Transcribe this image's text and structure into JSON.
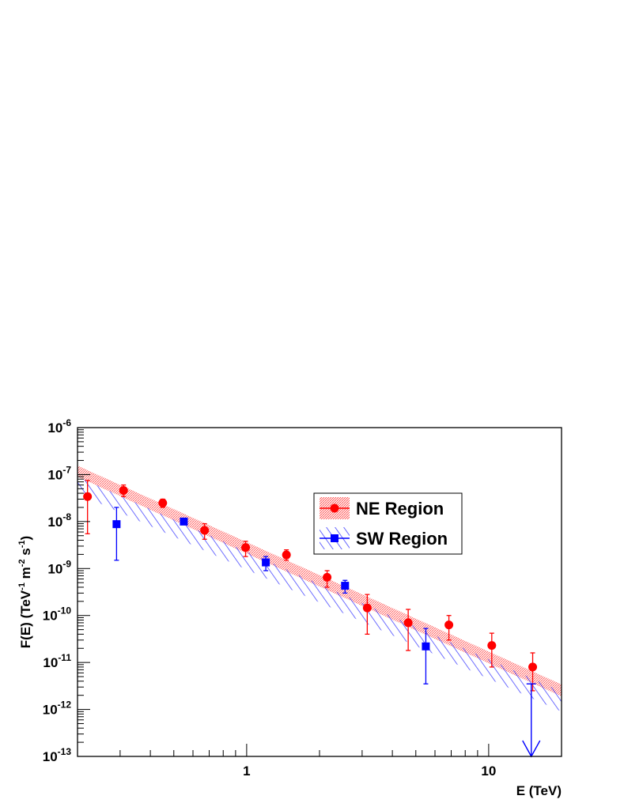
{
  "chart_data": {
    "type": "scatter",
    "xscale": "log",
    "yscale": "log",
    "xlim": [
      0.2,
      20
    ],
    "ylim": [
      1e-13,
      1e-06
    ],
    "xlabel": "E (TeV)",
    "ylabel": {
      "base": "F(E) (TeV",
      "exp1": "-1",
      "mid1": " m",
      "exp2": "-2",
      "mid2": " s",
      "exp3": "-1",
      "end": ")"
    },
    "x_ticks": [
      {
        "value": 1,
        "label": "1"
      },
      {
        "value": 10,
        "label": "10"
      }
    ],
    "y_ticks": [
      {
        "value": 1e-13,
        "base": "10",
        "exp": "-13"
      },
      {
        "value": 1e-12,
        "base": "10",
        "exp": "-12"
      },
      {
        "value": 1e-11,
        "base": "10",
        "exp": "-11"
      },
      {
        "value": 1e-10,
        "base": "10",
        "exp": "-10"
      },
      {
        "value": 1e-09,
        "base": "10",
        "exp": "-9"
      },
      {
        "value": 1e-08,
        "base": "10",
        "exp": "-8"
      },
      {
        "value": 1e-07,
        "base": "10",
        "exp": "-7"
      },
      {
        "value": 1e-06,
        "base": "10",
        "exp": "-6"
      }
    ],
    "series": [
      {
        "name": "NE Region",
        "color": "#ff0000",
        "marker": "circle",
        "band": {
          "x": [
            0.2,
            20
          ],
          "y_low": [
            9e-08,
            1.9e-12
          ],
          "y_high": [
            1.55e-07,
            3.4e-12
          ],
          "style": "dense-fill"
        },
        "points": [
          {
            "x": 0.22,
            "y": 3.4e-08,
            "lo": 5.5e-09,
            "hi": 7.5e-08
          },
          {
            "x": 0.31,
            "y": 4.6e-08,
            "lo": 3.4e-08,
            "hi": 6e-08
          },
          {
            "x": 0.45,
            "y": 2.5e-08,
            "lo": 2e-08,
            "hi": 3e-08
          },
          {
            "x": 0.67,
            "y": 6.5e-09,
            "lo": 4.2e-09,
            "hi": 9e-09
          },
          {
            "x": 0.99,
            "y": 2.8e-09,
            "lo": 1.8e-09,
            "hi": 3.8e-09
          },
          {
            "x": 1.46,
            "y": 1.95e-09,
            "lo": 1.5e-09,
            "hi": 2.5e-09
          },
          {
            "x": 2.15,
            "y": 6.5e-10,
            "lo": 4e-10,
            "hi": 9e-10
          },
          {
            "x": 3.15,
            "y": 1.45e-10,
            "lo": 4e-11,
            "hi": 2.8e-10
          },
          {
            "x": 4.65,
            "y": 7e-11,
            "lo": 1.8e-11,
            "hi": 1.35e-10
          },
          {
            "x": 6.85,
            "y": 6.3e-11,
            "lo": 3e-11,
            "hi": 1e-10
          },
          {
            "x": 10.3,
            "y": 2.3e-11,
            "lo": 8e-12,
            "hi": 4.2e-11
          },
          {
            "x": 15.2,
            "y": 8e-12,
            "lo": 2.5e-12,
            "hi": 1.6e-11
          }
        ]
      },
      {
        "name": "SW Region",
        "color": "#0000ff",
        "marker": "square",
        "band": {
          "x": [
            0.2,
            20
          ],
          "y_low": [
            4e-08,
            9e-13
          ],
          "y_high": [
            9e-08,
            2.4e-12
          ],
          "style": "hatched"
        },
        "points": [
          {
            "x": 0.29,
            "y": 8.8e-09,
            "lo": 1.5e-09,
            "hi": 2e-08
          },
          {
            "x": 0.55,
            "y": 1e-08,
            "lo": 9e-09,
            "hi": 1.12e-08
          },
          {
            "x": 1.2,
            "y": 1.35e-09,
            "lo": 9e-10,
            "hi": 1.8e-09
          },
          {
            "x": 2.55,
            "y": 4.3e-10,
            "lo": 3e-10,
            "hi": 5.6e-10
          },
          {
            "x": 5.5,
            "y": 2.2e-11,
            "lo": 3.5e-12,
            "hi": 5.3e-11
          },
          {
            "x": 15.0,
            "upper_limit": true,
            "y": 3.5e-12,
            "to": 1e-13
          }
        ]
      }
    ],
    "legend": {
      "position": "upper-right-center",
      "entries": [
        "NE Region",
        "SW Region"
      ]
    }
  }
}
